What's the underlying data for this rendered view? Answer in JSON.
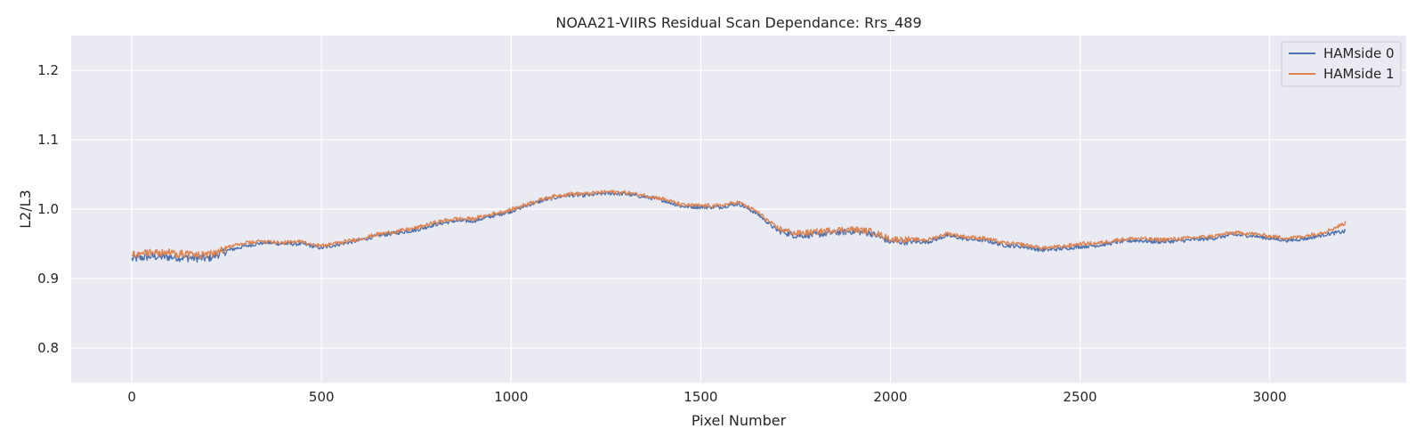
{
  "chart_data": {
    "type": "line",
    "title": "NOAA21-VIIRS Residual Scan Dependance: Rrs_489",
    "xlabel": "Pixel Number",
    "ylabel": "L2/L3",
    "xlim": [
      -160,
      3360
    ],
    "ylim": [
      0.75,
      1.25
    ],
    "xticks": [
      0,
      500,
      1000,
      1500,
      2000,
      2500,
      3000
    ],
    "yticks": [
      0.8,
      0.9,
      1.0,
      1.1,
      1.2
    ],
    "xtick_labels": [
      "0",
      "500",
      "1000",
      "1500",
      "2000",
      "2500",
      "3000"
    ],
    "ytick_labels": [
      "0.8",
      "0.9",
      "1.0",
      "1.1",
      "1.2"
    ],
    "grid": true,
    "background": "#eaeaf2",
    "legend_position": "top-right",
    "series": [
      {
        "name": "HAMside 0",
        "color": "#4c72b0",
        "x": [
          0,
          50,
          100,
          150,
          200,
          250,
          300,
          350,
          400,
          450,
          500,
          550,
          600,
          650,
          700,
          750,
          800,
          850,
          900,
          950,
          1000,
          1050,
          1100,
          1150,
          1200,
          1250,
          1300,
          1350,
          1400,
          1450,
          1500,
          1550,
          1600,
          1650,
          1700,
          1750,
          1800,
          1850,
          1900,
          1950,
          2000,
          2050,
          2100,
          2150,
          2200,
          2250,
          2300,
          2350,
          2400,
          2450,
          2500,
          2550,
          2600,
          2650,
          2700,
          2750,
          2800,
          2850,
          2900,
          2950,
          3000,
          3050,
          3100,
          3150,
          3200
        ],
        "y": [
          0.928,
          0.932,
          0.931,
          0.93,
          0.929,
          0.94,
          0.947,
          0.952,
          0.95,
          0.95,
          0.944,
          0.95,
          0.955,
          0.962,
          0.966,
          0.97,
          0.978,
          0.983,
          0.983,
          0.99,
          0.997,
          1.007,
          1.015,
          1.02,
          1.02,
          1.023,
          1.022,
          1.018,
          1.013,
          1.004,
          1.003,
          1.003,
          1.008,
          0.993,
          0.97,
          0.962,
          0.963,
          0.966,
          0.968,
          0.965,
          0.953,
          0.953,
          0.953,
          0.962,
          0.957,
          0.955,
          0.948,
          0.946,
          0.941,
          0.943,
          0.946,
          0.948,
          0.953,
          0.955,
          0.953,
          0.954,
          0.956,
          0.958,
          0.963,
          0.962,
          0.958,
          0.955,
          0.958,
          0.964,
          0.968
        ]
      },
      {
        "name": "HAMside 1",
        "color": "#dd8452",
        "x": [
          0,
          50,
          100,
          150,
          200,
          250,
          300,
          350,
          400,
          450,
          500,
          550,
          600,
          650,
          700,
          750,
          800,
          850,
          900,
          950,
          1000,
          1050,
          1100,
          1150,
          1200,
          1250,
          1300,
          1350,
          1400,
          1450,
          1500,
          1550,
          1600,
          1650,
          1700,
          1750,
          1800,
          1850,
          1900,
          1950,
          2000,
          2050,
          2100,
          2150,
          2200,
          2250,
          2300,
          2350,
          2400,
          2450,
          2500,
          2550,
          2600,
          2650,
          2700,
          2750,
          2800,
          2850,
          2900,
          2950,
          3000,
          3050,
          3100,
          3150,
          3200
        ],
        "y": [
          0.935,
          0.938,
          0.937,
          0.935,
          0.933,
          0.945,
          0.951,
          0.954,
          0.952,
          0.953,
          0.947,
          0.952,
          0.957,
          0.964,
          0.968,
          0.973,
          0.981,
          0.986,
          0.986,
          0.993,
          0.999,
          1.009,
          1.017,
          1.022,
          1.022,
          1.025,
          1.024,
          1.02,
          1.015,
          1.006,
          1.005,
          1.005,
          1.01,
          0.996,
          0.973,
          0.965,
          0.967,
          0.97,
          0.971,
          0.968,
          0.957,
          0.956,
          0.956,
          0.965,
          0.96,
          0.958,
          0.951,
          0.949,
          0.944,
          0.946,
          0.95,
          0.951,
          0.956,
          0.958,
          0.956,
          0.957,
          0.959,
          0.961,
          0.966,
          0.965,
          0.961,
          0.958,
          0.962,
          0.968,
          0.98
        ]
      }
    ]
  }
}
